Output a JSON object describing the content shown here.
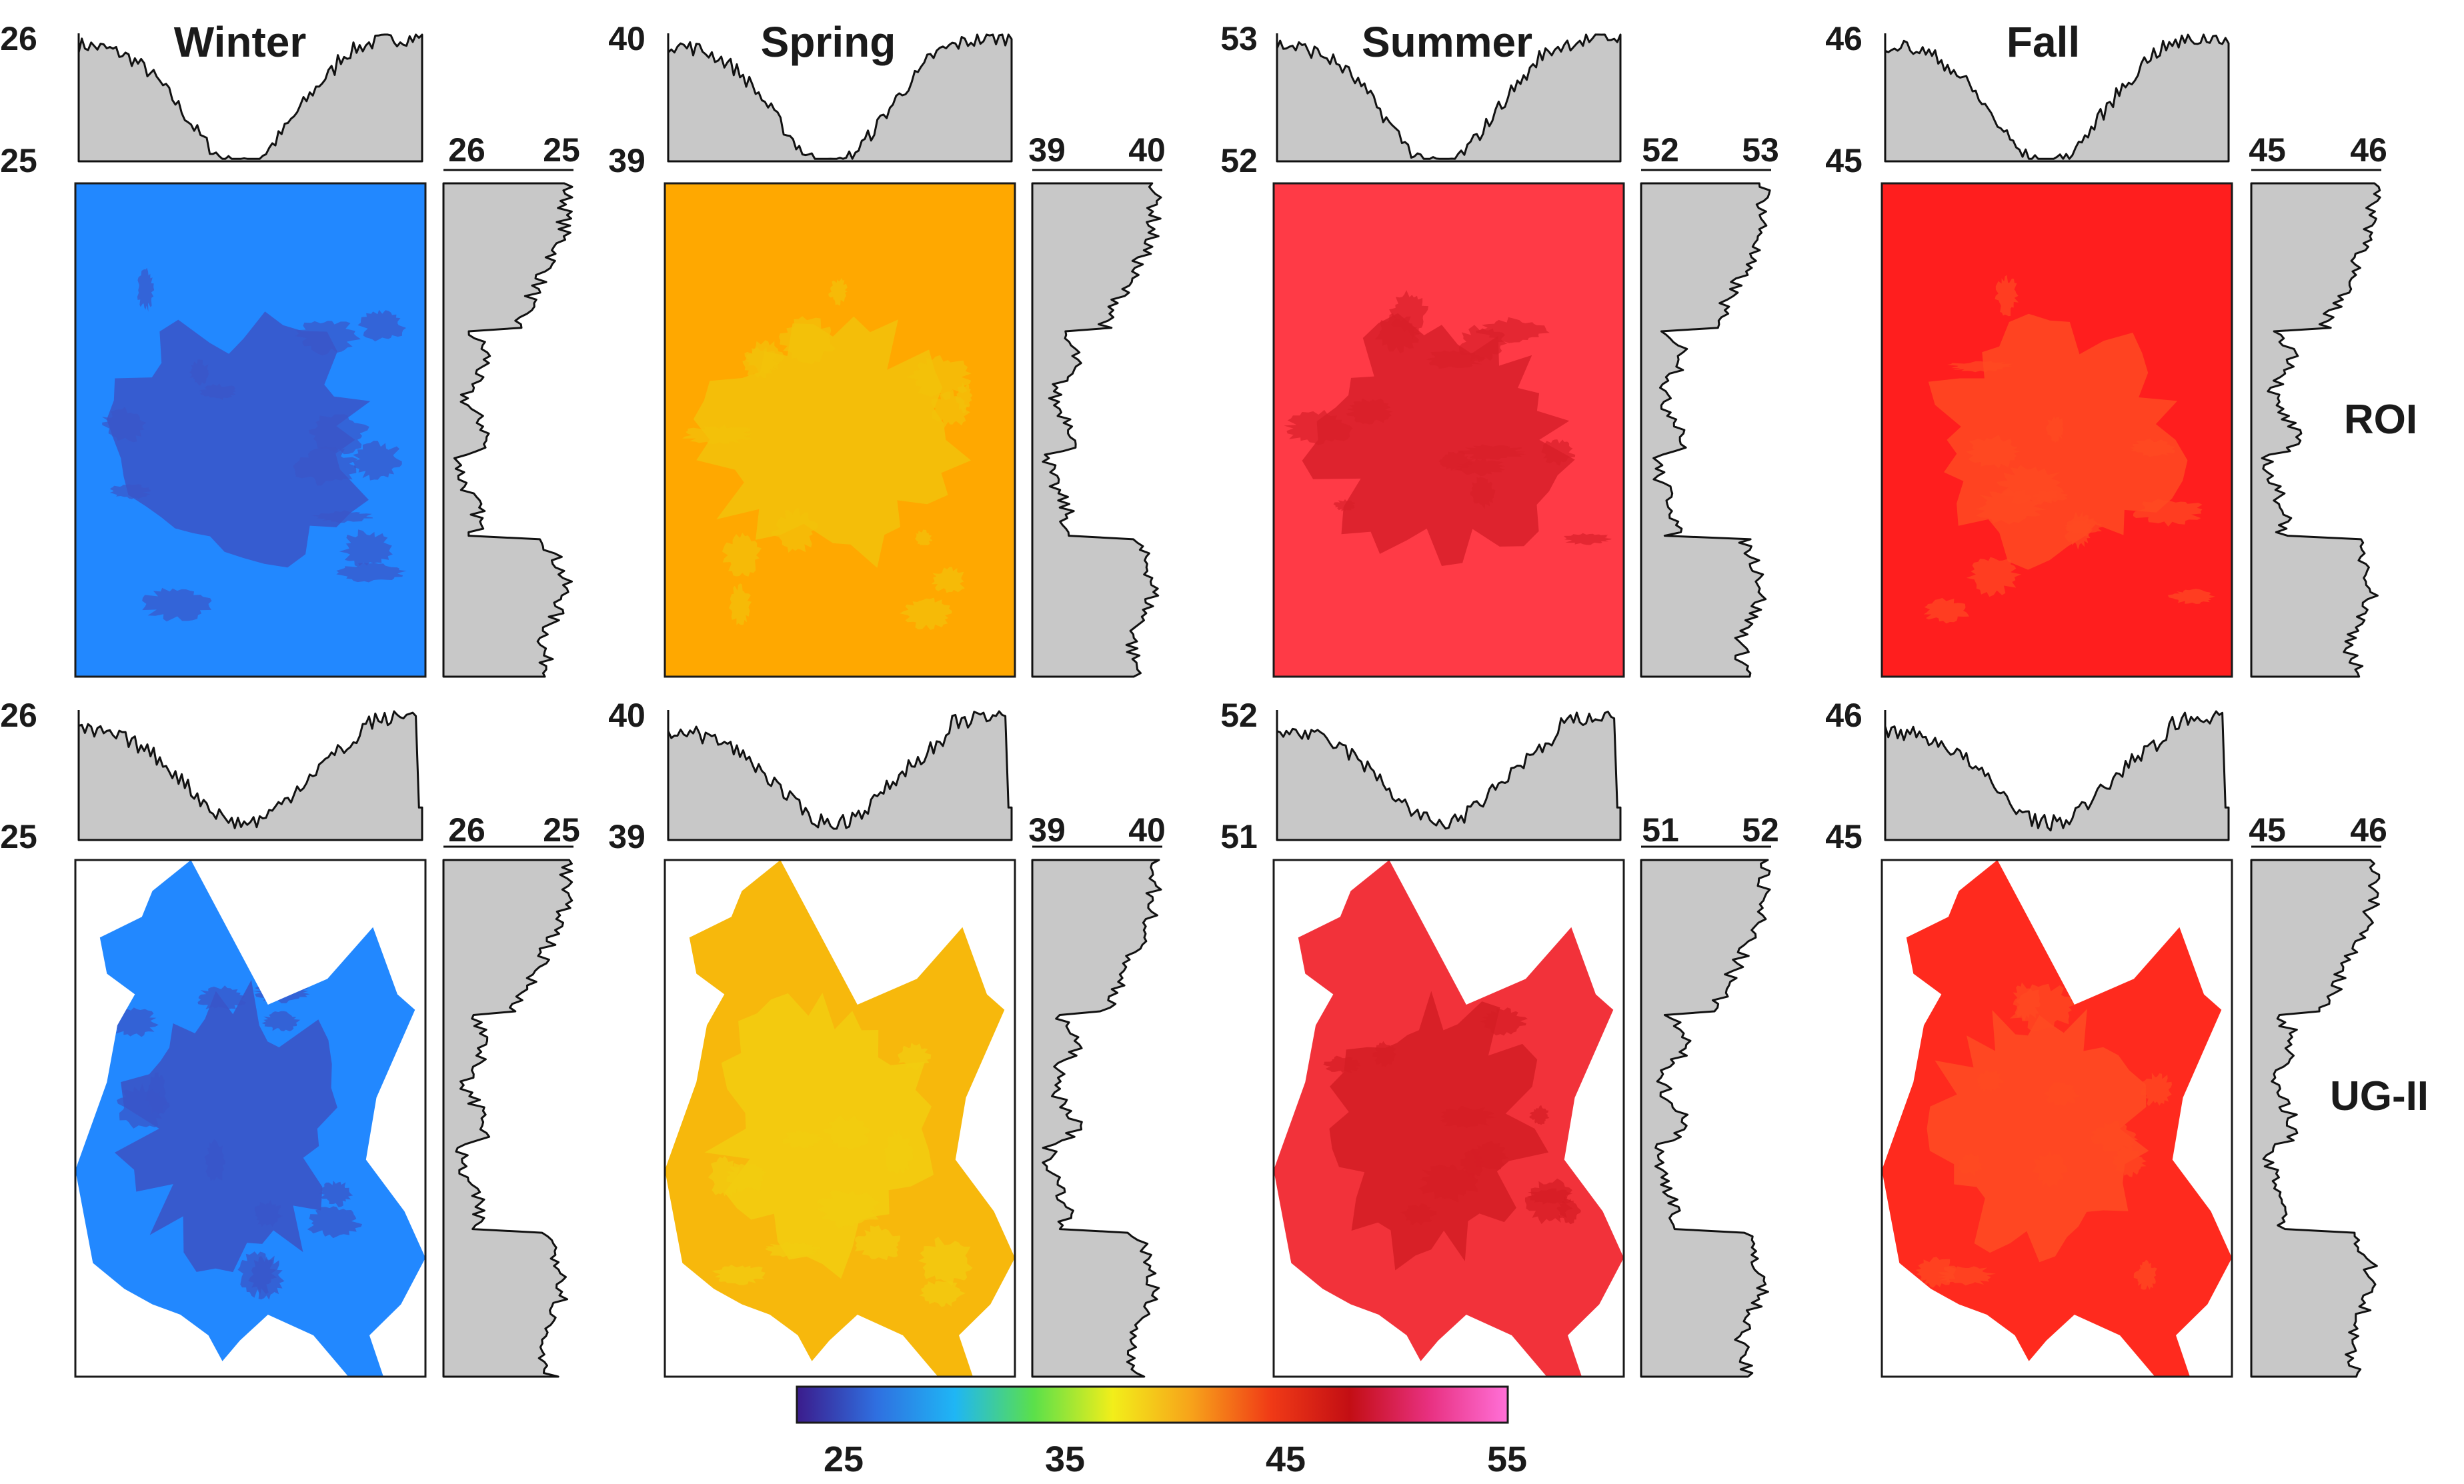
{
  "chart_data": {
    "type": "heatmap",
    "description_units": "Land surface temperature panels with marginal mean profiles",
    "seasons": [
      "Winter",
      "Spring",
      "Summer",
      "Fall"
    ],
    "rows": [
      "ROI",
      "UG-II"
    ],
    "colorbar": {
      "min": 22,
      "max": 55,
      "ticks": [
        "25",
        "35",
        "45",
        "55"
      ],
      "tick_values": [
        25,
        35,
        45,
        55
      ],
      "stops": [
        "#3b1c8c",
        "#2f6fe0",
        "#1fb6f5",
        "#5be04a",
        "#f2ee1a",
        "#f7a21a",
        "#f03a16",
        "#c30e14",
        "#e83080",
        "#ff70d8"
      ]
    },
    "panels": [
      {
        "season": "Winter",
        "row": "ROI",
        "top_min": "25",
        "top_max": "26",
        "side_min": "26",
        "side_max": "25",
        "base_color": "#2288ff",
        "urban_color": "#3a55c8"
      },
      {
        "season": "Spring",
        "row": "ROI",
        "top_min": "39",
        "top_max": "40",
        "side_min": "39",
        "side_max": "40",
        "base_color": "#ffa800",
        "urban_color": "#f2c20a"
      },
      {
        "season": "Summer",
        "row": "ROI",
        "top_min": "52",
        "top_max": "53",
        "side_min": "52",
        "side_max": "53",
        "base_color": "#ff3a46",
        "urban_color": "#d8202a"
      },
      {
        "season": "Fall",
        "row": "ROI",
        "top_min": "45",
        "top_max": "46",
        "side_min": "45",
        "side_max": "46",
        "base_color": "#ff1e1e",
        "urban_color": "#ff4a22"
      },
      {
        "season": "Winter",
        "row": "UG-II",
        "top_min": "25",
        "top_max": "26",
        "side_min": "26",
        "side_max": "25",
        "base_color": "#2288ff",
        "urban_color": "#3a55c8"
      },
      {
        "season": "Spring",
        "row": "UG-II",
        "top_min": "39",
        "top_max": "40",
        "side_min": "39",
        "side_max": "40",
        "base_color": "#f7b80c",
        "urban_color": "#f2cc10"
      },
      {
        "season": "Summer",
        "row": "UG-II",
        "top_min": "51",
        "top_max": "52",
        "side_min": "51",
        "side_max": "52",
        "base_color": "#f2323a",
        "urban_color": "#d51e26"
      },
      {
        "season": "Fall",
        "row": "UG-II",
        "top_min": "45",
        "top_max": "46",
        "side_min": "45",
        "side_max": "46",
        "base_color": "#ff2a1e",
        "urban_color": "#ff4a22"
      }
    ]
  }
}
